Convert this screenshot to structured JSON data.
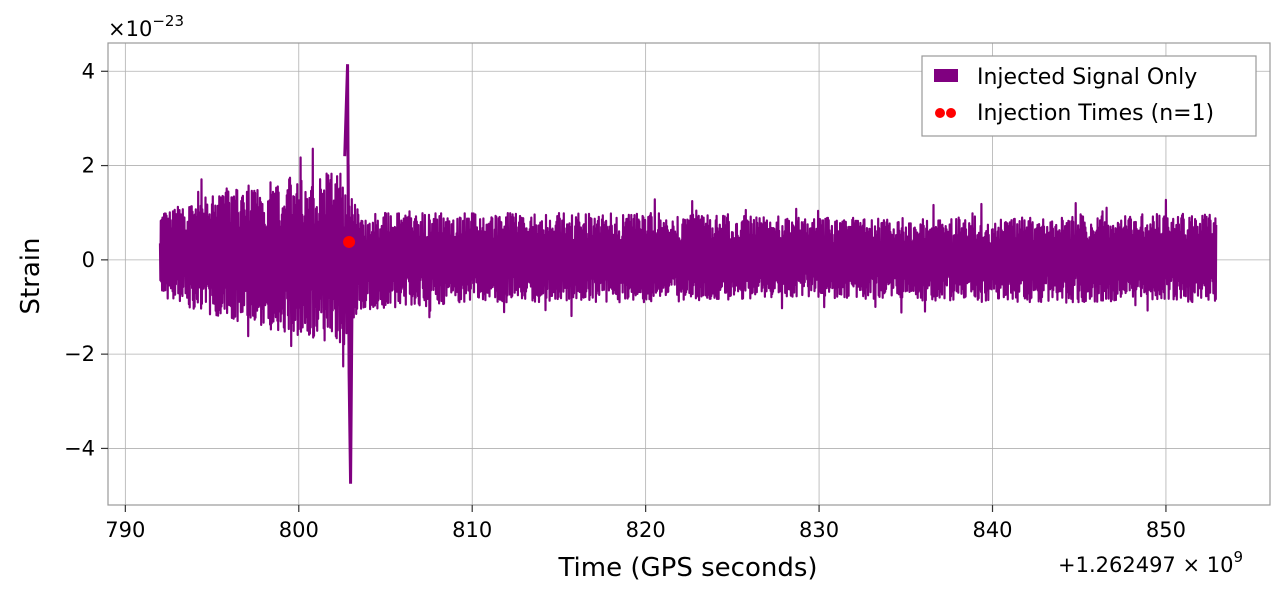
{
  "chart_data": {
    "type": "line",
    "title": "",
    "xlabel": "Time (GPS seconds)",
    "ylabel": "Strain",
    "y_scale_label_base": "×10",
    "y_scale_label_exp": "−23",
    "x_offset_label_base": "+1.262497 × 10",
    "x_offset_label_exp": "9",
    "xlim": [
      789,
      856
    ],
    "ylim": [
      -5.2,
      4.6
    ],
    "xticks": [
      790,
      800,
      810,
      820,
      830,
      840,
      850
    ],
    "xtick_labels": [
      "790",
      "800",
      "810",
      "820",
      "830",
      "840",
      "850"
    ],
    "yticks": [
      -4,
      -2,
      0,
      2,
      4
    ],
    "ytick_labels": [
      "−4",
      "−2",
      "0",
      "2",
      "4"
    ],
    "grid": true,
    "legend_position": "top-right",
    "series": [
      {
        "name": "Injected Signal Only",
        "color": "#800080",
        "x_range": [
          792.0,
          852.9
        ],
        "typical_envelope": [
          {
            "x": 792.0,
            "low": -0.8,
            "high": 1.0
          },
          {
            "x": 796.0,
            "low": -1.3,
            "high": 1.5
          },
          {
            "x": 800.0,
            "low": -1.6,
            "high": 1.8
          },
          {
            "x": 802.5,
            "low": -1.9,
            "high": 1.9
          },
          {
            "x": 803.5,
            "low": -1.1,
            "high": 1.0
          },
          {
            "x": 810.0,
            "low": -0.9,
            "high": 1.0
          },
          {
            "x": 820.0,
            "low": -0.9,
            "high": 1.0
          },
          {
            "x": 830.0,
            "low": -0.8,
            "high": 0.9
          },
          {
            "x": 840.0,
            "low": -0.9,
            "high": 0.9
          },
          {
            "x": 852.9,
            "low": -0.9,
            "high": 1.0
          }
        ],
        "spike": {
          "x": 802.9,
          "min": -4.75,
          "max": 4.15
        }
      }
    ],
    "markers": [
      {
        "name": "Injection Times (n=1)",
        "color": "#ff0000",
        "x": 802.9,
        "y": 0.38
      }
    ]
  }
}
